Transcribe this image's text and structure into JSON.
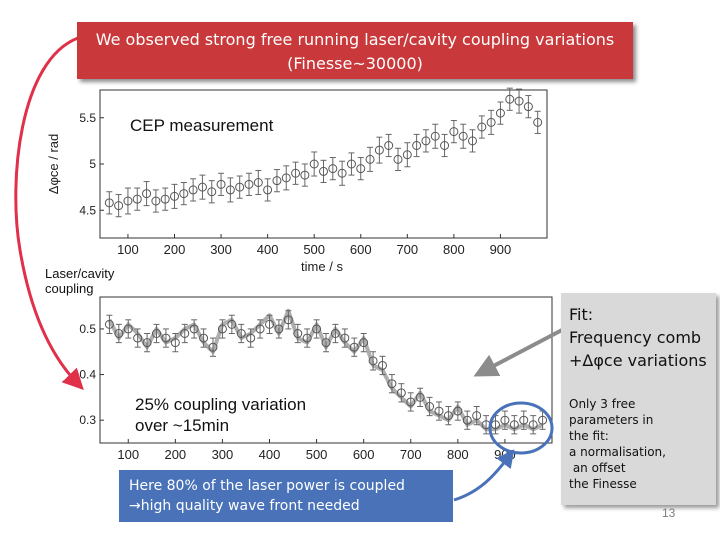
{
  "slide": {
    "title_line1": "We observed strong free running laser/cavity coupling variations",
    "title_line2": "(Finesse~30000)",
    "cep_label": "CEP measurement",
    "coupling_label_line1": "Laser/cavity",
    "coupling_label_line2": "coupling",
    "variation_line1": "25% coupling variation",
    "variation_line2": "over ~15min",
    "note_line1": "Here 80% of the laser power is coupled",
    "note_line2": "→high quality wave front needed",
    "fit_line1": "Fit:",
    "fit_line2": "Frequency comb",
    "fit_line3": "+Δφce variations",
    "fit_notes": [
      "Only 3 free",
      "parameters in",
      "the fit:",
      "a normalisation,",
      " an offset",
      "the Finesse"
    ],
    "slide_number": "13",
    "colors": {
      "title_bg": "#c9383a",
      "note_bg": "#4a72b8",
      "fit_bg": "#d9d9d9",
      "arrow_red": "#e0304a",
      "arrow_gray": "#8c8c8c",
      "arrow_blue": "#4a72b8"
    }
  },
  "chart_data": [
    {
      "type": "scatter",
      "title": "CEP measurement",
      "xlabel": "time / s",
      "ylabel": "Δφce / rad",
      "xlim": [
        40,
        1000
      ],
      "ylim": [
        4.2,
        5.8
      ],
      "x_ticks": [
        100,
        200,
        300,
        400,
        500,
        600,
        700,
        800,
        900
      ],
      "y_ticks": [
        4.5,
        5,
        5.5
      ],
      "error_bars": true,
      "series": [
        {
          "x": [
            60,
            80,
            100,
            120,
            140,
            160,
            180,
            200,
            220,
            240,
            260,
            280,
            300,
            320,
            340,
            360,
            380,
            400,
            420,
            440,
            460,
            480,
            500,
            520,
            540,
            560,
            580,
            600,
            620,
            640,
            660,
            680,
            700,
            720,
            740,
            760,
            780,
            800,
            820,
            840,
            860,
            880,
            900,
            920,
            940,
            960,
            980
          ],
          "y": [
            4.58,
            4.55,
            4.6,
            4.62,
            4.68,
            4.6,
            4.62,
            4.65,
            4.68,
            4.72,
            4.75,
            4.7,
            4.78,
            4.72,
            4.75,
            4.78,
            4.8,
            4.72,
            4.82,
            4.85,
            4.9,
            4.88,
            5.0,
            4.92,
            4.95,
            4.9,
            5.0,
            4.95,
            5.05,
            5.15,
            5.2,
            5.05,
            5.1,
            5.2,
            5.25,
            5.3,
            5.2,
            5.35,
            5.3,
            5.25,
            5.4,
            5.45,
            5.55,
            5.7,
            5.68,
            5.62,
            5.45
          ],
          "err": [
            0.12,
            0.12,
            0.14,
            0.12,
            0.13,
            0.12,
            0.12,
            0.13,
            0.12,
            0.12,
            0.13,
            0.12,
            0.12,
            0.13,
            0.12,
            0.12,
            0.13,
            0.12,
            0.12,
            0.13,
            0.12,
            0.12,
            0.13,
            0.12,
            0.12,
            0.13,
            0.12,
            0.12,
            0.13,
            0.14,
            0.12,
            0.12,
            0.13,
            0.12,
            0.12,
            0.13,
            0.12,
            0.12,
            0.13,
            0.12,
            0.12,
            0.13,
            0.12,
            0.12,
            0.13,
            0.12,
            0.12
          ]
        }
      ]
    },
    {
      "type": "scatter",
      "title": "",
      "xlabel": "",
      "ylabel": "",
      "xlim": [
        40,
        1000
      ],
      "ylim": [
        0.25,
        0.57
      ],
      "x_ticks": [
        100,
        200,
        300,
        400,
        500,
        600,
        700,
        800,
        900
      ],
      "y_ticks": [
        0.3,
        0.4,
        0.5
      ],
      "error_bars": true,
      "series": [
        {
          "x": [
            60,
            80,
            100,
            120,
            140,
            160,
            180,
            200,
            220,
            240,
            260,
            280,
            300,
            320,
            340,
            360,
            380,
            400,
            420,
            440,
            460,
            480,
            500,
            520,
            540,
            560,
            580,
            600,
            620,
            640,
            660,
            680,
            700,
            720,
            740,
            760,
            780,
            800,
            820,
            840,
            860,
            880,
            900,
            920,
            940,
            960,
            980
          ],
          "y": [
            0.51,
            0.49,
            0.5,
            0.48,
            0.47,
            0.49,
            0.48,
            0.47,
            0.49,
            0.5,
            0.48,
            0.46,
            0.5,
            0.51,
            0.49,
            0.48,
            0.5,
            0.51,
            0.5,
            0.52,
            0.49,
            0.48,
            0.5,
            0.47,
            0.49,
            0.48,
            0.46,
            0.47,
            0.43,
            0.42,
            0.38,
            0.36,
            0.34,
            0.35,
            0.33,
            0.32,
            0.31,
            0.32,
            0.3,
            0.31,
            0.29,
            0.29,
            0.3,
            0.29,
            0.3,
            0.29,
            0.3
          ],
          "err": [
            0.02,
            0.02,
            0.02,
            0.02,
            0.02,
            0.02,
            0.02,
            0.02,
            0.02,
            0.02,
            0.02,
            0.02,
            0.02,
            0.02,
            0.02,
            0.02,
            0.02,
            0.02,
            0.02,
            0.02,
            0.02,
            0.02,
            0.02,
            0.02,
            0.02,
            0.02,
            0.02,
            0.02,
            0.02,
            0.02,
            0.02,
            0.02,
            0.02,
            0.02,
            0.02,
            0.02,
            0.02,
            0.02,
            0.02,
            0.02,
            0.02,
            0.02,
            0.02,
            0.02,
            0.02,
            0.02,
            0.02
          ]
        },
        {
          "x": [
            60,
            80,
            100,
            120,
            140,
            160,
            180,
            200,
            220,
            240,
            260,
            280,
            300,
            320,
            340,
            360,
            380,
            400,
            420,
            440,
            460,
            480,
            500,
            520,
            540,
            560,
            580,
            600,
            620,
            640,
            660,
            680,
            700,
            720,
            740,
            760,
            780,
            800,
            820,
            840,
            860,
            880,
            900,
            920,
            940,
            960,
            980
          ],
          "y": [
            0.52,
            0.48,
            0.51,
            0.49,
            0.46,
            0.5,
            0.47,
            0.48,
            0.5,
            0.51,
            0.47,
            0.45,
            0.51,
            0.52,
            0.48,
            0.49,
            0.51,
            0.53,
            0.49,
            0.54,
            0.48,
            0.47,
            0.51,
            0.46,
            0.5,
            0.47,
            0.45,
            0.48,
            0.42,
            0.41,
            0.37,
            0.35,
            0.33,
            0.36,
            0.32,
            0.31,
            0.3,
            0.33,
            0.29,
            0.3,
            0.28,
            0.28,
            0.29,
            0.28,
            0.29,
            0.28,
            0.29
          ]
        }
      ]
    }
  ]
}
